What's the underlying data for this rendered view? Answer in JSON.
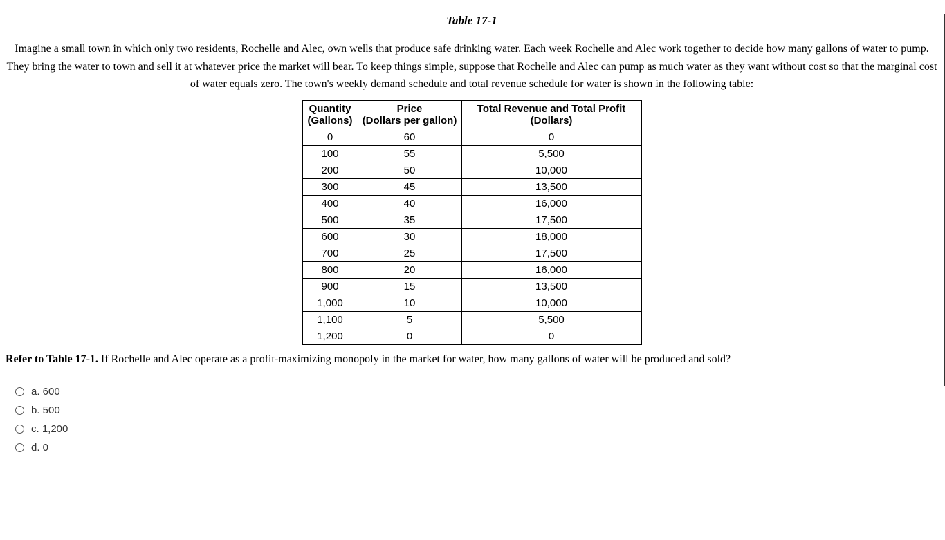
{
  "title": "Table 17-1",
  "intro": "Imagine a small town in which only two residents, Rochelle and Alec, own wells that produce safe drinking water. Each week Rochelle and Alec work together to decide how many gallons of water to pump. They bring the water to town and sell it at whatever price the market will bear. To keep things simple, suppose that Rochelle and Alec can pump as much water as they want without cost so that the marginal cost of water equals zero. The town's weekly demand schedule and total revenue schedule for water is shown in the following table:",
  "table": {
    "headers": {
      "qty_line1": "Quantity",
      "qty_line2": "(Gallons)",
      "price_line1": "Price",
      "price_line2": "(Dollars per gallon)",
      "rev_line1": "Total Revenue and Total Profit",
      "rev_line2": "(Dollars)"
    },
    "rows": [
      {
        "qty": "0",
        "price": "60",
        "rev": "0"
      },
      {
        "qty": "100",
        "price": "55",
        "rev": "5,500"
      },
      {
        "qty": "200",
        "price": "50",
        "rev": "10,000"
      },
      {
        "qty": "300",
        "price": "45",
        "rev": "13,500"
      },
      {
        "qty": "400",
        "price": "40",
        "rev": "16,000"
      },
      {
        "qty": "500",
        "price": "35",
        "rev": "17,500"
      },
      {
        "qty": "600",
        "price": "30",
        "rev": "18,000"
      },
      {
        "qty": "700",
        "price": "25",
        "rev": "17,500"
      },
      {
        "qty": "800",
        "price": "20",
        "rev": "16,000"
      },
      {
        "qty": "900",
        "price": "15",
        "rev": "13,500"
      },
      {
        "qty": "1,000",
        "price": "10",
        "rev": "10,000"
      },
      {
        "qty": "1,100",
        "price": "5",
        "rev": "5,500"
      },
      {
        "qty": "1,200",
        "price": "0",
        "rev": "0"
      }
    ]
  },
  "question": {
    "refer": "Refer to Table 17-1.",
    "text": " If Rochelle and Alec operate as a profit-maximizing monopoly in the market for water, how many gallons of water will be produced and sold?"
  },
  "options": [
    {
      "label": "a. 600"
    },
    {
      "label": "b. 500"
    },
    {
      "label": "c. 1,200"
    },
    {
      "label": "d. 0"
    }
  ]
}
